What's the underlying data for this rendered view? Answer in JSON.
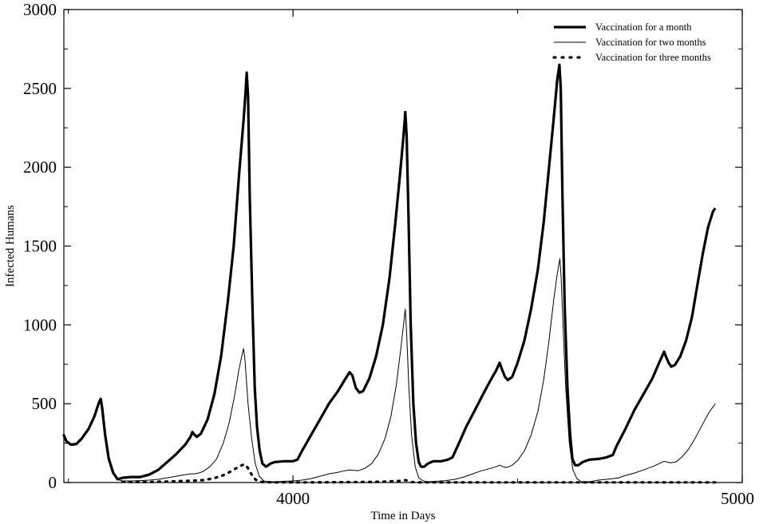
{
  "chart_data": {
    "type": "line",
    "title": "",
    "xlabel": "Time in Days",
    "ylabel": "Infected Humans",
    "xlim": [
      3490,
      5000
    ],
    "ylim": [
      0,
      3000
    ],
    "x_ticks": [
      4000,
      5000
    ],
    "x_tick_labels": [
      "4000",
      "5000"
    ],
    "y_ticks": [
      0,
      500,
      1000,
      1500,
      2000,
      2500,
      3000
    ],
    "y_tick_labels": [
      "0",
      "500",
      "1000",
      "1500",
      "2000",
      "2500",
      "3000"
    ],
    "grid": false,
    "legend_position": "top-right",
    "series": [
      {
        "name": "Vaccination for a month",
        "style": "thick",
        "points": [
          [
            3490,
            300
          ],
          [
            3496,
            260
          ],
          [
            3506,
            240
          ],
          [
            3518,
            245
          ],
          [
            3530,
            280
          ],
          [
            3545,
            340
          ],
          [
            3558,
            420
          ],
          [
            3565,
            480
          ],
          [
            3570,
            520
          ],
          [
            3572,
            530
          ],
          [
            3575,
            480
          ],
          [
            3582,
            300
          ],
          [
            3590,
            150
          ],
          [
            3600,
            60
          ],
          [
            3610,
            20
          ],
          [
            3620,
            30
          ],
          [
            3640,
            35
          ],
          [
            3660,
            35
          ],
          [
            3680,
            50
          ],
          [
            3700,
            80
          ],
          [
            3720,
            130
          ],
          [
            3740,
            180
          ],
          [
            3760,
            240
          ],
          [
            3772,
            290
          ],
          [
            3776,
            320
          ],
          [
            3780,
            305
          ],
          [
            3786,
            290
          ],
          [
            3795,
            310
          ],
          [
            3810,
            400
          ],
          [
            3825,
            560
          ],
          [
            3840,
            800
          ],
          [
            3855,
            1150
          ],
          [
            3868,
            1500
          ],
          [
            3880,
            1950
          ],
          [
            3890,
            2300
          ],
          [
            3895,
            2500
          ],
          [
            3897,
            2600
          ],
          [
            3900,
            2450
          ],
          [
            3904,
            1800
          ],
          [
            3910,
            1100
          ],
          [
            3915,
            600
          ],
          [
            3920,
            350
          ],
          [
            3926,
            200
          ],
          [
            3932,
            120
          ],
          [
            3940,
            100
          ],
          [
            3950,
            120
          ],
          [
            3960,
            130
          ],
          [
            3980,
            135
          ],
          [
            4000,
            135
          ],
          [
            4010,
            145
          ],
          [
            4020,
            200
          ],
          [
            4040,
            300
          ],
          [
            4060,
            400
          ],
          [
            4080,
            500
          ],
          [
            4100,
            580
          ],
          [
            4115,
            650
          ],
          [
            4126,
            700
          ],
          [
            4132,
            680
          ],
          [
            4140,
            600
          ],
          [
            4148,
            570
          ],
          [
            4156,
            580
          ],
          [
            4170,
            660
          ],
          [
            4185,
            800
          ],
          [
            4200,
            1000
          ],
          [
            4215,
            1300
          ],
          [
            4228,
            1650
          ],
          [
            4238,
            1950
          ],
          [
            4246,
            2200
          ],
          [
            4250,
            2350
          ],
          [
            4253,
            2200
          ],
          [
            4257,
            1700
          ],
          [
            4262,
            1000
          ],
          [
            4268,
            500
          ],
          [
            4274,
            250
          ],
          [
            4280,
            130
          ],
          [
            4285,
            100
          ],
          [
            4292,
            100
          ],
          [
            4300,
            120
          ],
          [
            4312,
            135
          ],
          [
            4330,
            135
          ],
          [
            4345,
            145
          ],
          [
            4355,
            160
          ],
          [
            4368,
            240
          ],
          [
            4385,
            350
          ],
          [
            4405,
            460
          ],
          [
            4425,
            570
          ],
          [
            4440,
            650
          ],
          [
            4452,
            710
          ],
          [
            4460,
            760
          ],
          [
            4465,
            720
          ],
          [
            4472,
            670
          ],
          [
            4478,
            650
          ],
          [
            4488,
            670
          ],
          [
            4500,
            760
          ],
          [
            4515,
            900
          ],
          [
            4530,
            1100
          ],
          [
            4545,
            1350
          ],
          [
            4558,
            1650
          ],
          [
            4570,
            2000
          ],
          [
            4580,
            2300
          ],
          [
            4588,
            2550
          ],
          [
            4593,
            2650
          ],
          [
            4596,
            2500
          ],
          [
            4600,
            1800
          ],
          [
            4605,
            1100
          ],
          [
            4611,
            600
          ],
          [
            4617,
            300
          ],
          [
            4622,
            150
          ],
          [
            4628,
            110
          ],
          [
            4635,
            110
          ],
          [
            4645,
            130
          ],
          [
            4660,
            145
          ],
          [
            4680,
            150
          ],
          [
            4698,
            160
          ],
          [
            4712,
            175
          ],
          [
            4720,
            230
          ],
          [
            4740,
            340
          ],
          [
            4760,
            460
          ],
          [
            4780,
            560
          ],
          [
            4800,
            660
          ],
          [
            4815,
            760
          ],
          [
            4826,
            830
          ],
          [
            4830,
            800
          ],
          [
            4836,
            760
          ],
          [
            4842,
            735
          ],
          [
            4850,
            745
          ],
          [
            4862,
            800
          ],
          [
            4875,
            900
          ],
          [
            4888,
            1050
          ],
          [
            4900,
            1250
          ],
          [
            4912,
            1450
          ],
          [
            4924,
            1620
          ],
          [
            4935,
            1720
          ],
          [
            4940,
            1740
          ]
        ]
      },
      {
        "name": "Vaccination for two months",
        "style": "thin",
        "points": [
          [
            3490,
            300
          ],
          [
            3496,
            260
          ],
          [
            3506,
            240
          ],
          [
            3518,
            245
          ],
          [
            3530,
            280
          ],
          [
            3545,
            340
          ],
          [
            3558,
            420
          ],
          [
            3565,
            480
          ],
          [
            3570,
            520
          ],
          [
            3572,
            530
          ],
          [
            3575,
            480
          ],
          [
            3582,
            300
          ],
          [
            3590,
            150
          ],
          [
            3600,
            60
          ],
          [
            3610,
            20
          ],
          [
            3620,
            10
          ],
          [
            3640,
            10
          ],
          [
            3660,
            12
          ],
          [
            3680,
            15
          ],
          [
            3700,
            20
          ],
          [
            3720,
            30
          ],
          [
            3740,
            40
          ],
          [
            3760,
            50
          ],
          [
            3772,
            55
          ],
          [
            3780,
            55
          ],
          [
            3790,
            60
          ],
          [
            3800,
            70
          ],
          [
            3815,
            100
          ],
          [
            3830,
            150
          ],
          [
            3845,
            250
          ],
          [
            3858,
            380
          ],
          [
            3870,
            550
          ],
          [
            3880,
            720
          ],
          [
            3886,
            800
          ],
          [
            3890,
            850
          ],
          [
            3893,
            780
          ],
          [
            3900,
            500
          ],
          [
            3908,
            280
          ],
          [
            3916,
            120
          ],
          [
            3925,
            40
          ],
          [
            3935,
            10
          ],
          [
            3945,
            5
          ],
          [
            3960,
            5
          ],
          [
            3980,
            8
          ],
          [
            4000,
            10
          ],
          [
            4020,
            15
          ],
          [
            4040,
            25
          ],
          [
            4060,
            40
          ],
          [
            4080,
            55
          ],
          [
            4100,
            65
          ],
          [
            4115,
            75
          ],
          [
            4125,
            80
          ],
          [
            4135,
            78
          ],
          [
            4145,
            75
          ],
          [
            4160,
            90
          ],
          [
            4175,
            120
          ],
          [
            4190,
            180
          ],
          [
            4205,
            280
          ],
          [
            4218,
            420
          ],
          [
            4230,
            620
          ],
          [
            4240,
            850
          ],
          [
            4246,
            1000
          ],
          [
            4250,
            1100
          ],
          [
            4253,
            950
          ],
          [
            4258,
            600
          ],
          [
            4264,
            300
          ],
          [
            4272,
            100
          ],
          [
            4280,
            30
          ],
          [
            4290,
            10
          ],
          [
            4300,
            5
          ],
          [
            4320,
            8
          ],
          [
            4340,
            12
          ],
          [
            4360,
            20
          ],
          [
            4380,
            35
          ],
          [
            4400,
            55
          ],
          [
            4420,
            75
          ],
          [
            4440,
            90
          ],
          [
            4452,
            100
          ],
          [
            4460,
            110
          ],
          [
            4468,
            100
          ],
          [
            4476,
            95
          ],
          [
            4488,
            110
          ],
          [
            4500,
            140
          ],
          [
            4515,
            200
          ],
          [
            4530,
            300
          ],
          [
            4545,
            450
          ],
          [
            4558,
            650
          ],
          [
            4570,
            900
          ],
          [
            4580,
            1150
          ],
          [
            4588,
            1320
          ],
          [
            4594,
            1420
          ],
          [
            4597,
            1300
          ],
          [
            4601,
            1000
          ],
          [
            4607,
            600
          ],
          [
            4615,
            250
          ],
          [
            4623,
            80
          ],
          [
            4632,
            25
          ],
          [
            4642,
            5
          ],
          [
            4660,
            5
          ],
          [
            4680,
            15
          ],
          [
            4698,
            20
          ],
          [
            4712,
            25
          ],
          [
            4725,
            30
          ],
          [
            4740,
            45
          ],
          [
            4760,
            60
          ],
          [
            4780,
            80
          ],
          [
            4800,
            100
          ],
          [
            4815,
            120
          ],
          [
            4826,
            135
          ],
          [
            4832,
            130
          ],
          [
            4840,
            125
          ],
          [
            4852,
            130
          ],
          [
            4865,
            160
          ],
          [
            4880,
            210
          ],
          [
            4895,
            280
          ],
          [
            4910,
            360
          ],
          [
            4925,
            440
          ],
          [
            4935,
            480
          ],
          [
            4940,
            500
          ]
        ]
      },
      {
        "name": "Vaccination for three months",
        "style": "dotted",
        "points": [
          [
            3490,
            300
          ],
          [
            3496,
            260
          ],
          [
            3506,
            240
          ],
          [
            3518,
            245
          ],
          [
            3530,
            280
          ],
          [
            3545,
            340
          ],
          [
            3558,
            420
          ],
          [
            3565,
            480
          ],
          [
            3570,
            520
          ],
          [
            3572,
            530
          ],
          [
            3575,
            480
          ],
          [
            3582,
            300
          ],
          [
            3590,
            150
          ],
          [
            3600,
            60
          ],
          [
            3610,
            20
          ],
          [
            3620,
            5
          ],
          [
            3640,
            3
          ],
          [
            3660,
            3
          ],
          [
            3680,
            3
          ],
          [
            3700,
            5
          ],
          [
            3720,
            6
          ],
          [
            3740,
            8
          ],
          [
            3760,
            10
          ],
          [
            3780,
            12
          ],
          [
            3800,
            15
          ],
          [
            3820,
            25
          ],
          [
            3840,
            40
          ],
          [
            3855,
            60
          ],
          [
            3870,
            85
          ],
          [
            3880,
            100
          ],
          [
            3890,
            115
          ],
          [
            3895,
            110
          ],
          [
            3900,
            90
          ],
          [
            3906,
            60
          ],
          [
            3912,
            30
          ],
          [
            3920,
            12
          ],
          [
            3930,
            4
          ],
          [
            3940,
            2
          ],
          [
            3960,
            1
          ],
          [
            3980,
            1
          ],
          [
            4000,
            1
          ],
          [
            4050,
            1
          ],
          [
            4100,
            2
          ],
          [
            4150,
            3
          ],
          [
            4200,
            5
          ],
          [
            4220,
            8
          ],
          [
            4240,
            10
          ],
          [
            4250,
            15
          ],
          [
            4256,
            10
          ],
          [
            4264,
            3
          ],
          [
            4280,
            1
          ],
          [
            4300,
            1
          ],
          [
            4400,
            1
          ],
          [
            4500,
            1
          ],
          [
            4600,
            1
          ],
          [
            4700,
            1
          ],
          [
            4800,
            1
          ],
          [
            4900,
            1
          ],
          [
            4940,
            1
          ]
        ]
      }
    ]
  }
}
